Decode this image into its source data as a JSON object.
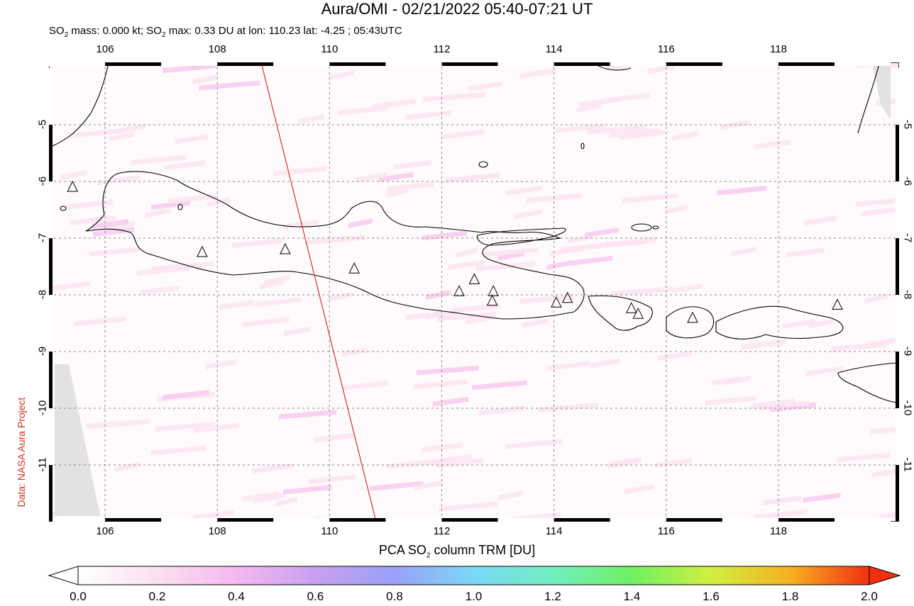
{
  "title": "Aura/OMI - 02/21/2022 05:40-07:21 UT",
  "subtitle": {
    "prefix": "SO",
    "sub": "2",
    "mid1": " mass: 0.000 kt; SO",
    "sub2": "2",
    "rest": " max: 0.33 DU at lon: 110.23 lat: -4.25 ; 05:43UTC"
  },
  "credit": "Data: NASA Aura Project",
  "map": {
    "lon_ticks": [
      "106",
      "108",
      "110",
      "112",
      "114",
      "116",
      "118"
    ],
    "lat_ticks": [
      "-5",
      "-6",
      "-7",
      "-8",
      "-9",
      "-10",
      "-11"
    ],
    "lon_range": [
      105.0,
      120.15
    ],
    "lat_range": [
      -12.0,
      -3.9
    ]
  },
  "colorbar": {
    "label_prefix": "PCA SO",
    "label_sub": "2",
    "label_suffix": " column TRM [DU]",
    "ticks": [
      "0.0",
      "0.2",
      "0.4",
      "0.6",
      "0.8",
      "1.0",
      "1.2",
      "1.4",
      "1.6",
      "1.8",
      "2.0"
    ],
    "colors": [
      "#ffffff",
      "#fbe0f0",
      "#f5b8f0",
      "#c8a0f0",
      "#9aa0f8",
      "#7ad8f8",
      "#70f0c0",
      "#70f060",
      "#d0f040",
      "#f8b020",
      "#f03010"
    ]
  },
  "volcanoes": [
    {
      "lon": 105.42,
      "lat": -6.1
    },
    {
      "lon": 107.73,
      "lat": -7.25
    },
    {
      "lon": 109.21,
      "lat": -7.2
    },
    {
      "lon": 110.44,
      "lat": -7.54
    },
    {
      "lon": 112.31,
      "lat": -7.94
    },
    {
      "lon": 112.58,
      "lat": -7.73
    },
    {
      "lon": 112.92,
      "lat": -7.94
    },
    {
      "lon": 112.9,
      "lat": -8.11
    },
    {
      "lon": 114.04,
      "lat": -8.14
    },
    {
      "lon": 114.24,
      "lat": -8.06
    },
    {
      "lon": 115.38,
      "lat": -8.24
    },
    {
      "lon": 115.5,
      "lat": -8.34
    },
    {
      "lon": 116.47,
      "lat": -8.41
    },
    {
      "lon": 119.05,
      "lat": -8.18
    }
  ]
}
